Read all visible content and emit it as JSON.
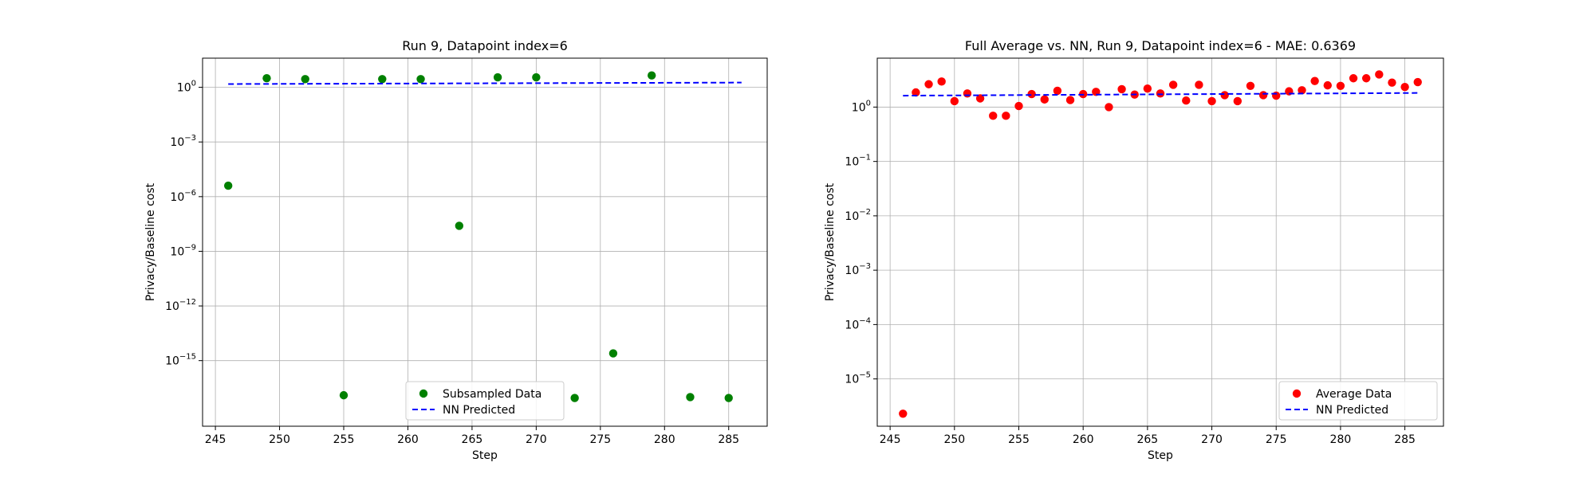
{
  "chart_data": [
    {
      "type": "scatter",
      "title": "Run 9, Datapoint index=6",
      "xlabel": "Step",
      "ylabel": "Privacy/Baseline cost",
      "xscale": "linear",
      "yscale": "log",
      "xlim": [
        244.0,
        288.0
      ],
      "ylim_exp": [
        -18.6,
        1.6
      ],
      "xticks": [
        245,
        250,
        255,
        260,
        265,
        270,
        275,
        280,
        285
      ],
      "xtick_labels": [
        "245",
        "250",
        "255",
        "260",
        "265",
        "270",
        "275",
        "280",
        "285"
      ],
      "yticks_exp": [
        0,
        -3,
        -6,
        -9,
        -12,
        -15
      ],
      "ytick_labels": [
        "10^0",
        "10^-3",
        "10^-6",
        "10^-9",
        "10^-12",
        "10^-15"
      ],
      "grid": true,
      "legend_position": "lower center",
      "series": [
        {
          "name": "Subsampled Data",
          "kind": "scatter",
          "color": "#008000",
          "x": [
            246,
            249,
            252,
            255,
            258,
            261,
            264,
            267,
            270,
            273,
            276,
            279,
            282,
            285
          ],
          "y_exp": [
            -5.4,
            0.5,
            0.45,
            -16.9,
            0.45,
            0.45,
            -7.6,
            0.55,
            0.55,
            -17.05,
            -14.6,
            0.65,
            -17.0,
            -17.05
          ]
        },
        {
          "name": "NN Predicted",
          "kind": "line",
          "style": "dashed",
          "color": "#0000ff",
          "x": [
            246,
            286
          ],
          "y_exp": [
            0.18,
            0.26
          ]
        }
      ]
    },
    {
      "type": "scatter",
      "title": "Full Average vs. NN, Run 9, Datapoint index=6 - MAE: 0.6369",
      "xlabel": "Step",
      "ylabel": "Privacy/Baseline cost",
      "xscale": "linear",
      "yscale": "log",
      "xlim": [
        244.0,
        288.0
      ],
      "ylim_exp": [
        -5.87,
        0.9
      ],
      "xticks": [
        245,
        250,
        255,
        260,
        265,
        270,
        275,
        280,
        285
      ],
      "xtick_labels": [
        "245",
        "250",
        "255",
        "260",
        "265",
        "270",
        "275",
        "280",
        "285"
      ],
      "yticks_exp": [
        0,
        -1,
        -2,
        -3,
        -4,
        -5
      ],
      "ytick_labels": [
        "10^0",
        "10^-1",
        "10^-2",
        "10^-3",
        "10^-4",
        "10^-5"
      ],
      "grid": true,
      "legend_position": "lower right",
      "series": [
        {
          "name": "Average Data",
          "kind": "scatter",
          "color": "#ff0000",
          "x": [
            246,
            247,
            248,
            249,
            250,
            251,
            252,
            253,
            254,
            255,
            256,
            257,
            258,
            259,
            260,
            261,
            262,
            263,
            264,
            265,
            266,
            267,
            268,
            269,
            270,
            271,
            272,
            273,
            274,
            275,
            276,
            277,
            278,
            279,
            280,
            281,
            282,
            283,
            284,
            285,
            286
          ],
          "y_exp": [
            -5.64,
            0.27,
            0.42,
            0.47,
            0.11,
            0.25,
            0.16,
            -0.16,
            -0.16,
            0.02,
            0.24,
            0.14,
            0.3,
            0.13,
            0.24,
            0.28,
            0.0,
            0.33,
            0.23,
            0.34,
            0.25,
            0.41,
            0.12,
            0.41,
            0.11,
            0.22,
            0.11,
            0.39,
            0.22,
            0.21,
            0.29,
            0.31,
            0.48,
            0.4,
            0.39,
            0.53,
            0.53,
            0.6,
            0.45,
            0.37,
            0.46
          ]
        },
        {
          "name": "NN Predicted",
          "kind": "line",
          "style": "dashed",
          "color": "#0000ff",
          "x": [
            246,
            286
          ],
          "y_exp": [
            0.21,
            0.26
          ]
        }
      ]
    }
  ]
}
